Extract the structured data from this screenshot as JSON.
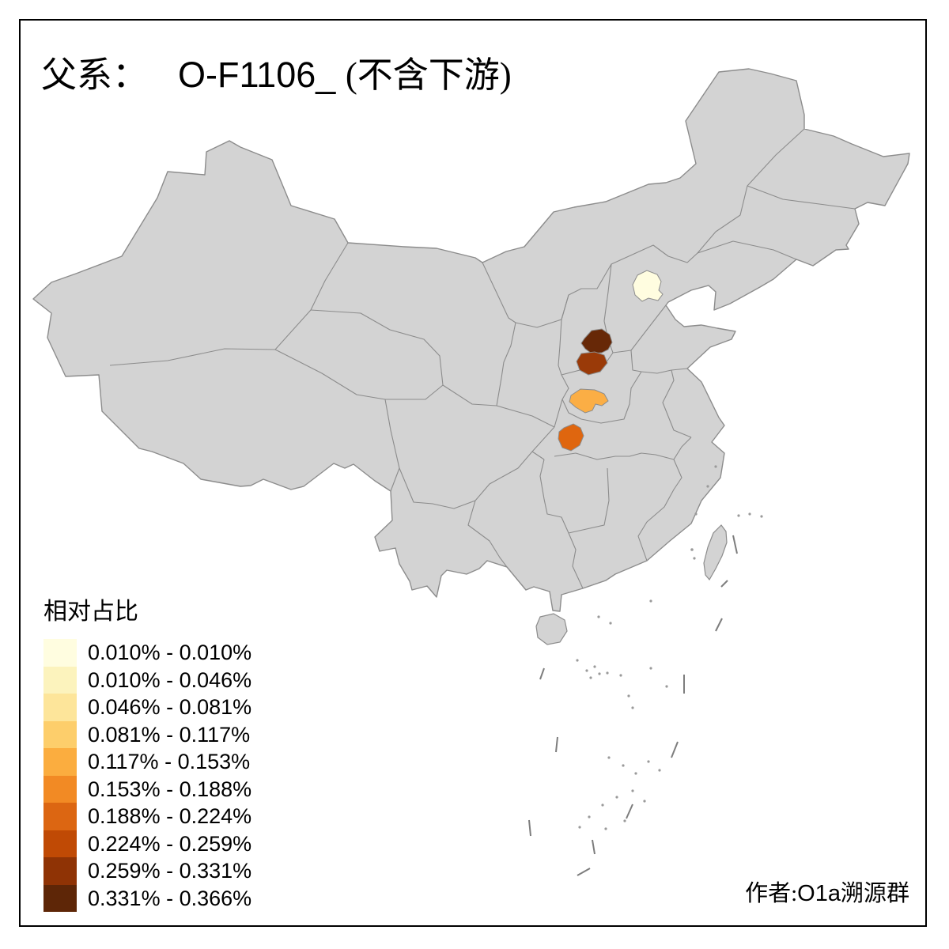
{
  "title": {
    "prefix": "父系：",
    "haplogroup": "O-F1106_",
    "suffix": "(不含下游)"
  },
  "legend": {
    "title": "相对占比",
    "items": [
      {
        "range": "0.010% - 0.010%",
        "color": "#FFFDE0"
      },
      {
        "range": "0.010% - 0.046%",
        "color": "#FCF3BD"
      },
      {
        "range": "0.046% - 0.081%",
        "color": "#FDE59A"
      },
      {
        "range": "0.081% - 0.117%",
        "color": "#FDCE6B"
      },
      {
        "range": "0.117% - 0.153%",
        "color": "#FBAD3F"
      },
      {
        "range": "0.153% - 0.188%",
        "color": "#F28A24"
      },
      {
        "range": "0.188% - 0.224%",
        "color": "#DC6612"
      },
      {
        "range": "0.224% - 0.259%",
        "color": "#C04A05"
      },
      {
        "range": "0.259% - 0.331%",
        "color": "#8F3305"
      },
      {
        "range": "0.331% - 0.366%",
        "color": "#5E2607"
      }
    ]
  },
  "attribution": {
    "prefix": "作者:",
    "group": "O1a溯源群"
  },
  "map": {
    "land_fill": "#D3D3D3",
    "border_color": "#8C8C8C",
    "sea_background": "#FFFFFF",
    "highlighted_regions": [
      {
        "id": "beijing-area",
        "legend_class": 1,
        "range": "0.010% - 0.010%",
        "color": "#FFFDE0"
      },
      {
        "id": "linfen-area",
        "legend_class": 10,
        "range": "0.331% - 0.366%",
        "color": "#672807"
      },
      {
        "id": "yuncheng-area",
        "legend_class": 9,
        "range": "0.259% - 0.331%",
        "color": "#9A3A08"
      },
      {
        "id": "sanmenxia-area",
        "legend_class": 5,
        "range": "0.117% - 0.153%",
        "color": "#FBAE45"
      },
      {
        "id": "shiyan-area",
        "legend_class": 7,
        "range": "0.188% - 0.224%",
        "color": "#DF660F"
      }
    ]
  }
}
